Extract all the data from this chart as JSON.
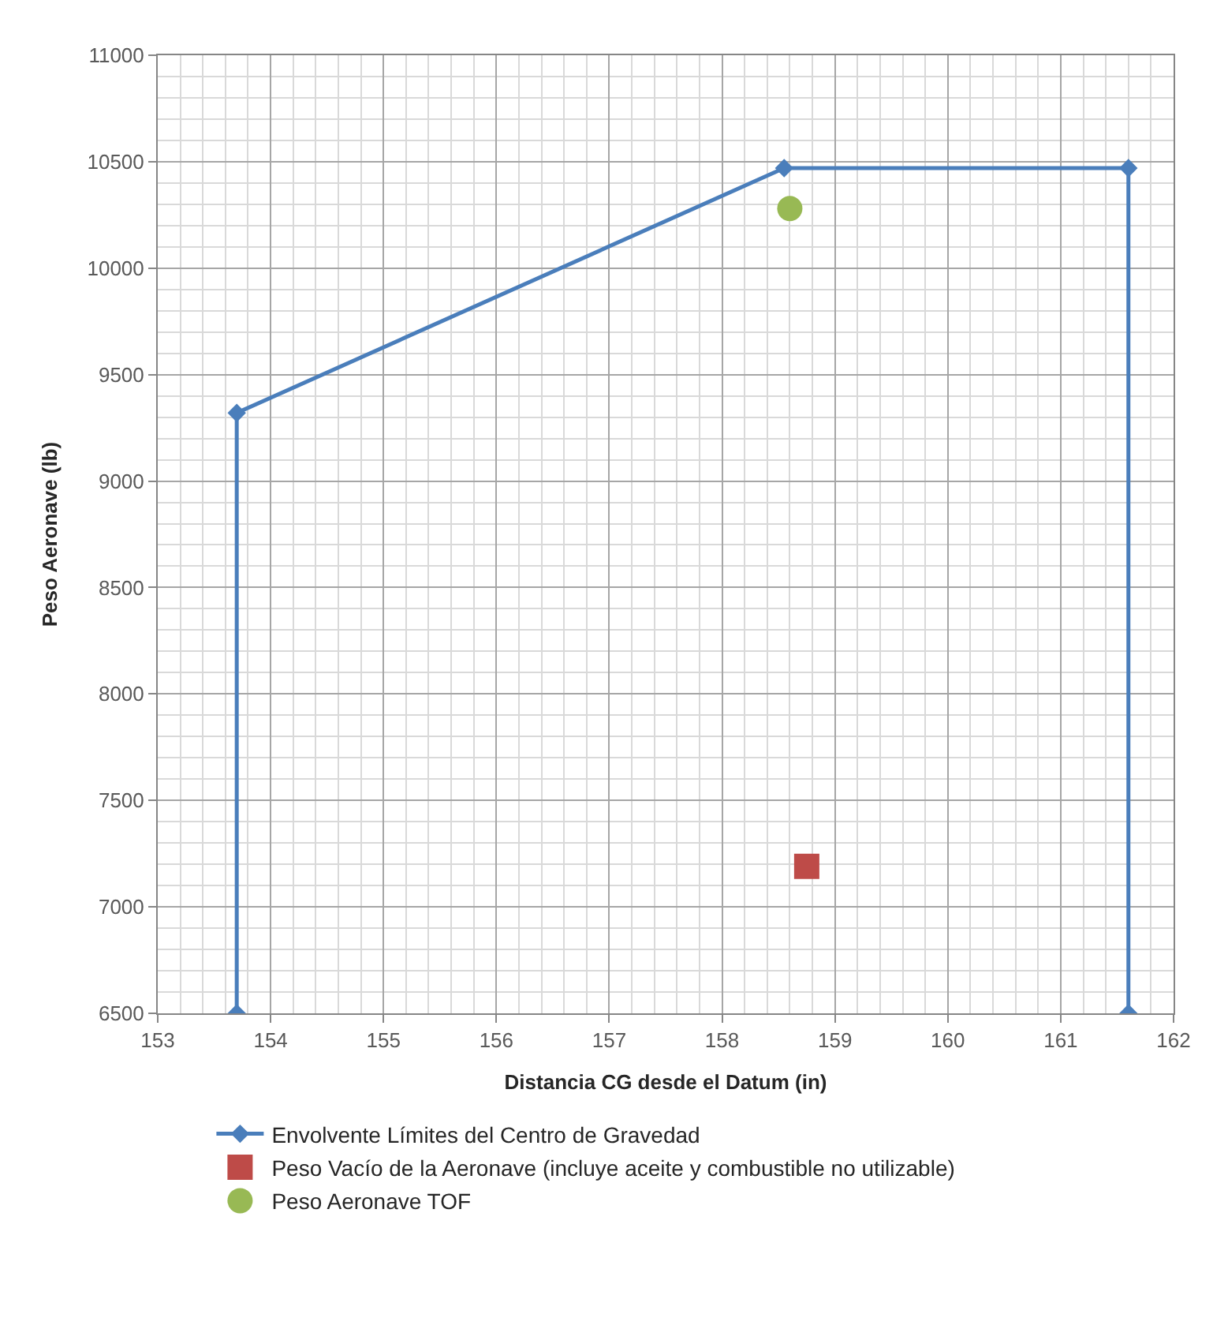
{
  "chart_data": {
    "type": "line",
    "xlabel": "Distancia CG desde el Datum (in)",
    "ylabel": "Peso Aeronave (lb)",
    "xlim": [
      153,
      162
    ],
    "xticks": [
      153,
      154,
      155,
      156,
      157,
      158,
      159,
      160,
      161,
      162
    ],
    "ylim": [
      6500,
      11000
    ],
    "yticks": [
      6500,
      7000,
      7500,
      8000,
      8500,
      9000,
      9500,
      10000,
      10500,
      11000
    ],
    "grid": true,
    "legend": "bottom",
    "series": [
      {
        "name": "Envolvente Límites del Centro de Gravedad",
        "marker": "diamond",
        "color": "#4a7ebb",
        "x": [
          153.7,
          153.7,
          158.55,
          161.6,
          161.6
        ],
        "values": [
          6500,
          9320,
          10470,
          10470,
          6500
        ]
      },
      {
        "name": "Peso Vacío de la Aeronave (incluye aceite y combustible no utilizable)",
        "type": "scatter",
        "marker": "square",
        "color": "#be4b48",
        "x": [
          158.75
        ],
        "values": [
          7190
        ]
      },
      {
        "name": "Peso Aeronave TOF",
        "type": "scatter",
        "marker": "circle",
        "color": "#98b954",
        "x": [
          158.6
        ],
        "values": [
          10280
        ]
      }
    ]
  }
}
